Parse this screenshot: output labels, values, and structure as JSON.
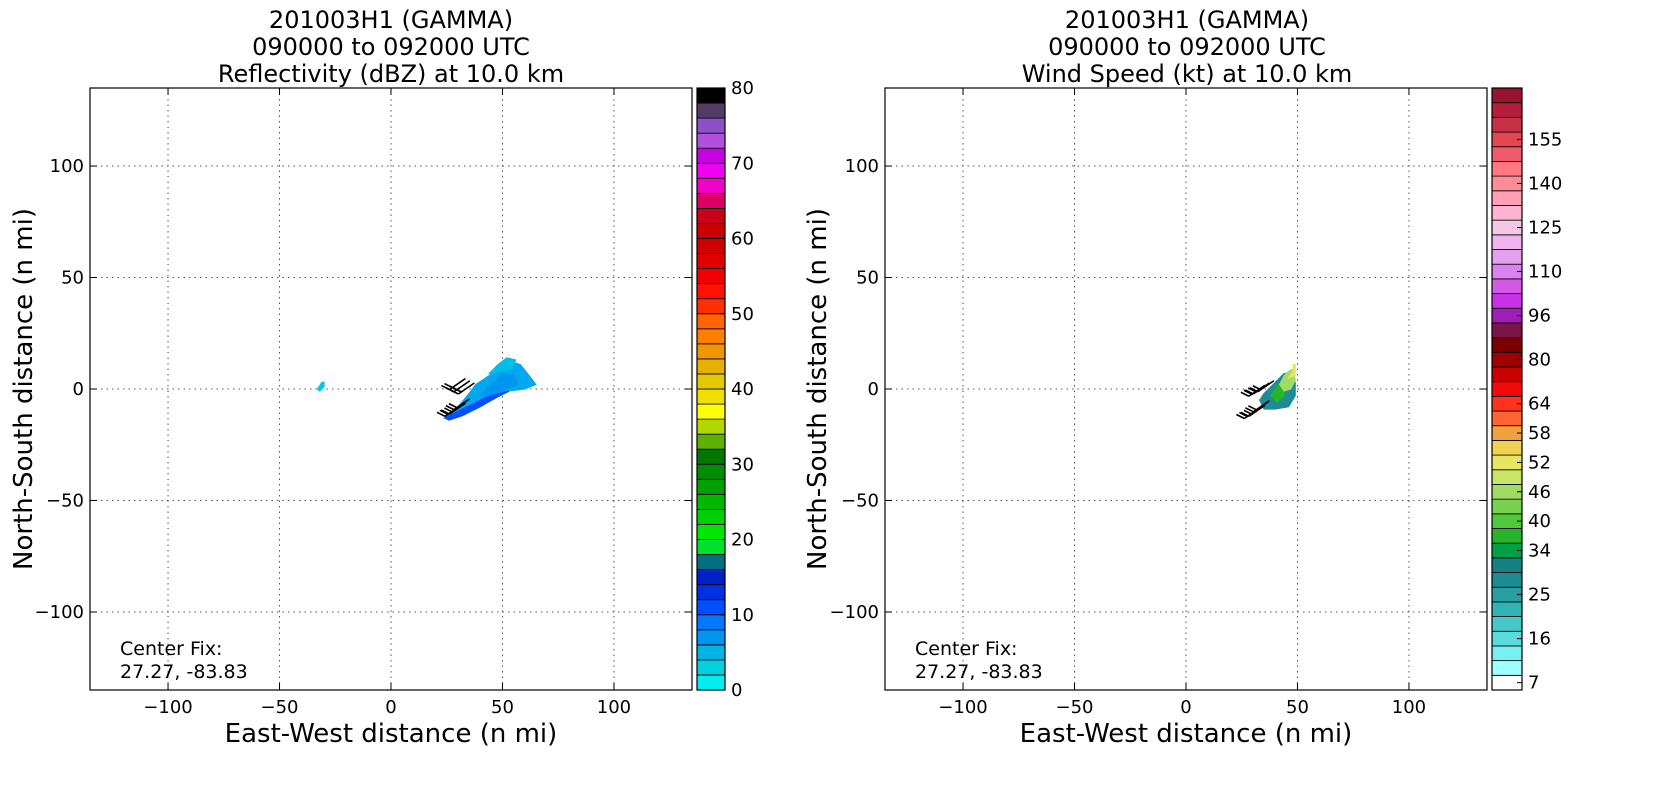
{
  "chart_data": [
    {
      "type": "heatmap",
      "title_lines": [
        "201003H1 (GAMMA)",
        "090000 to 092000 UTC",
        "Reflectivity (dBZ) at 10.0 km"
      ],
      "xlabel": "East-West distance (n mi)",
      "ylabel": "North-South distance (n mi)",
      "xlim": [
        -135,
        135
      ],
      "ylim": [
        -135,
        135
      ],
      "xticks": [
        -100,
        -50,
        0,
        50,
        100
      ],
      "yticks": [
        -100,
        -50,
        0,
        50,
        100
      ],
      "xtick_labels": [
        "−100",
        "−50",
        "0",
        "50",
        "100"
      ],
      "ytick_labels": [
        "−100",
        "−50",
        "0",
        "50",
        "100"
      ],
      "grid": true,
      "annotation": [
        "Center Fix:",
        "27.27, -83.83"
      ],
      "colorbar": {
        "min": 0,
        "max": 80,
        "tick_values": [
          0,
          10,
          20,
          30,
          40,
          50,
          60,
          70,
          80
        ],
        "tick_labels": [
          "0",
          "10",
          "20",
          "30",
          "40",
          "50",
          "60",
          "70",
          "80"
        ],
        "colors": [
          "#00eeee",
          "#00d0e0",
          "#00b4e6",
          "#0096f0",
          "#0078ff",
          "#0050ff",
          "#0030e0",
          "#0020c8",
          "#006f80",
          "#00e030",
          "#00e600",
          "#00d000",
          "#00b800",
          "#00a000",
          "#008c00",
          "#007800",
          "#60b000",
          "#b0d800",
          "#ffff00",
          "#f0e000",
          "#e6c800",
          "#e6b000",
          "#f09600",
          "#ff8000",
          "#ff6400",
          "#ff3000",
          "#ff1000",
          "#f00000",
          "#e00000",
          "#d00000",
          "#c80000",
          "#c80018",
          "#dc0064",
          "#f000c8",
          "#f000f0",
          "#c800e6",
          "#b050dc",
          "#8c50c8",
          "#503c64",
          "#000000"
        ]
      },
      "fields": [
        {
          "name": "main-band",
          "value": 12,
          "color": "#00a8f0",
          "polygon": [
            [
              24,
              -13
            ],
            [
              30,
              -8
            ],
            [
              35,
              -2
            ],
            [
              38,
              2
            ],
            [
              44,
              6
            ],
            [
              48,
              10
            ],
            [
              52,
              13
            ],
            [
              58,
              11
            ],
            [
              62,
              6
            ],
            [
              65,
              2
            ],
            [
              60,
              0
            ],
            [
              52,
              -1
            ],
            [
              45,
              -5
            ],
            [
              38,
              -9
            ],
            [
              30,
              -12
            ]
          ]
        },
        {
          "name": "inner-core",
          "value": 14,
          "color": "#0096f0",
          "polygon": [
            [
              40,
              -3
            ],
            [
              45,
              2
            ],
            [
              50,
              7
            ],
            [
              55,
              6
            ],
            [
              57,
              2
            ],
            [
              52,
              0
            ],
            [
              46,
              -3
            ]
          ]
        },
        {
          "name": "south-edge",
          "value": 10,
          "color": "#0050ff",
          "polygon": [
            [
              24,
              -13
            ],
            [
              30,
              -10
            ],
            [
              36,
              -7
            ],
            [
              42,
              -4
            ],
            [
              48,
              -2
            ],
            [
              53,
              -1
            ],
            [
              47,
              -4
            ],
            [
              40,
              -8
            ],
            [
              32,
              -12
            ],
            [
              26,
              -14
            ]
          ]
        },
        {
          "name": "north-edge",
          "value": 8,
          "color": "#00c0e8",
          "polygon": [
            [
              44,
              7
            ],
            [
              48,
              11
            ],
            [
              52,
              14
            ],
            [
              56,
              13
            ],
            [
              54,
              9
            ],
            [
              49,
              8
            ]
          ]
        },
        {
          "name": "isolated-echo",
          "value": 6,
          "color": "#00c8e6",
          "polygon": [
            [
              -33,
              0
            ],
            [
              -31,
              3
            ],
            [
              -30,
              3
            ],
            [
              -30,
              1
            ],
            [
              -32,
              -1
            ]
          ]
        }
      ],
      "barbs": [
        [
          32,
          0
        ],
        [
          30,
          1
        ],
        [
          28,
          2
        ],
        [
          30,
          -7
        ],
        [
          28,
          -9
        ],
        [
          26,
          -10
        ]
      ]
    },
    {
      "type": "heatmap",
      "title_lines": [
        "201003H1 (GAMMA)",
        "090000 to 092000 UTC",
        "Wind Speed (kt) at 10.0 km"
      ],
      "xlabel": "East-West distance (n mi)",
      "ylabel": "North-South distance (n mi)",
      "xlim": [
        -135,
        135
      ],
      "ylim": [
        -135,
        135
      ],
      "xticks": [
        -100,
        -50,
        0,
        50,
        100
      ],
      "yticks": [
        -100,
        -50,
        0,
        50,
        100
      ],
      "xtick_labels": [
        "−100",
        "−50",
        "0",
        "50",
        "100"
      ],
      "ytick_labels": [
        "−100",
        "−50",
        "0",
        "50",
        "100"
      ],
      "grid": true,
      "annotation": [
        "Center Fix:",
        "27.27, -83.83"
      ],
      "colorbar": {
        "min": 7,
        "max": 160,
        "tick_values": [
          7,
          16,
          25,
          34,
          40,
          46,
          52,
          58,
          64,
          80,
          96,
          110,
          125,
          140,
          155
        ],
        "tick_labels": [
          "7",
          "16",
          "25",
          "34",
          "40",
          "46",
          "52",
          "58",
          "64",
          "80",
          "96",
          "110",
          "125",
          "140",
          "155"
        ],
        "colors": [
          "#ffffff",
          "#a0ffff",
          "#78f0f0",
          "#5adcdc",
          "#46c8c8",
          "#32b4b4",
          "#28a0a0",
          "#1e8c96",
          "#148282",
          "#00a046",
          "#28b428",
          "#50c83c",
          "#78d250",
          "#a0dc64",
          "#c8e664",
          "#e6e664",
          "#f0d250",
          "#f0a03c",
          "#ff6432",
          "#ff321e",
          "#f00a0a",
          "#c80000",
          "#a00000",
          "#780000",
          "#781446",
          "#a01eb4",
          "#c832e6",
          "#d25ae6",
          "#dc82f0",
          "#e6a0f0",
          "#f0b4f0",
          "#f5c8e6",
          "#ffb4d2",
          "#ffa0b4",
          "#ff8c96",
          "#ff7882",
          "#f05a6e",
          "#e64650",
          "#c83246",
          "#b41e3c",
          "#961432"
        ],
        "tick_indices": [
          0,
          3,
          6,
          9,
          11,
          13,
          15,
          17,
          19,
          22,
          25,
          28,
          31,
          34,
          37
        ]
      },
      "fields": [
        {
          "name": "teal-core",
          "value": 25,
          "color": "#1e8c96",
          "polygon": [
            [
              33,
              -5
            ],
            [
              35,
              -2
            ],
            [
              37,
              0
            ],
            [
              40,
              3
            ],
            [
              44,
              7
            ],
            [
              47,
              7
            ],
            [
              49,
              3
            ],
            [
              49,
              -3
            ],
            [
              46,
              -8
            ],
            [
              40,
              -9
            ],
            [
              35,
              -9
            ]
          ]
        },
        {
          "name": "green-ring",
          "value": 34,
          "color": "#28b428",
          "polygon": [
            [
              38,
              -3
            ],
            [
              40,
              0
            ],
            [
              42,
              3
            ],
            [
              44,
              1
            ],
            [
              44,
              -3
            ],
            [
              41,
              -6
            ]
          ]
        },
        {
          "name": "light-green",
          "value": 40,
          "color": "#a0dc64",
          "polygon": [
            [
              42,
              2
            ],
            [
              44,
              6
            ],
            [
              46,
              8
            ],
            [
              48,
              9
            ],
            [
              49,
              4
            ],
            [
              47,
              0
            ],
            [
              44,
              -1
            ]
          ]
        },
        {
          "name": "yellow-tip",
          "value": 46,
          "color": "#e6e664",
          "polygon": [
            [
              46,
              5
            ],
            [
              48,
              8
            ],
            [
              48,
              11
            ],
            [
              49,
              11
            ],
            [
              49,
              6
            ]
          ]
        }
      ],
      "barbs": [
        [
          34,
          1
        ],
        [
          32,
          0
        ],
        [
          30,
          -1
        ],
        [
          32,
          -8
        ],
        [
          30,
          -10
        ],
        [
          28,
          -11
        ]
      ]
    }
  ]
}
